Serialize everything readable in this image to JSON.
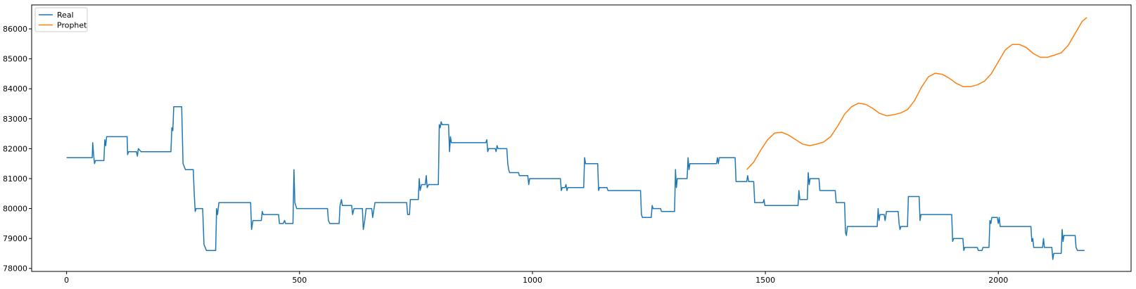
{
  "chart_data": {
    "type": "line",
    "title": "",
    "xlabel": "",
    "ylabel": "",
    "xlim": [
      -75,
      2285
    ],
    "ylim": [
      77900,
      86800
    ],
    "xticks": [
      0,
      500,
      1000,
      1500,
      2000
    ],
    "yticks": [
      78000,
      79000,
      80000,
      81000,
      82000,
      83000,
      84000,
      85000,
      86000
    ],
    "legend": {
      "placement": "top-left",
      "entries": [
        "Real",
        "Prophet"
      ]
    },
    "grid": false,
    "series": [
      {
        "name": "Real",
        "color": "#1f77b4",
        "points": [
          [
            0,
            81700
          ],
          [
            55,
            81700
          ],
          [
            56,
            82200
          ],
          [
            58,
            81800
          ],
          [
            60,
            81500
          ],
          [
            62,
            81600
          ],
          [
            80,
            81600
          ],
          [
            82,
            82300
          ],
          [
            84,
            82100
          ],
          [
            86,
            82400
          ],
          [
            130,
            82400
          ],
          [
            131,
            81800
          ],
          [
            133,
            81900
          ],
          [
            150,
            81900
          ],
          [
            152,
            81750
          ],
          [
            154,
            82000
          ],
          [
            160,
            81900
          ],
          [
            210,
            81900
          ],
          [
            224,
            81900
          ],
          [
            226,
            82700
          ],
          [
            228,
            82600
          ],
          [
            230,
            83400
          ],
          [
            247,
            83400
          ],
          [
            250,
            81500
          ],
          [
            255,
            81300
          ],
          [
            272,
            81300
          ],
          [
            274,
            80500
          ],
          [
            276,
            79900
          ],
          [
            278,
            80000
          ],
          [
            292,
            80000
          ],
          [
            295,
            78800
          ],
          [
            300,
            78600
          ],
          [
            320,
            78600
          ],
          [
            322,
            80000
          ],
          [
            324,
            79800
          ],
          [
            327,
            80200
          ],
          [
            395,
            80200
          ],
          [
            397,
            79300
          ],
          [
            400,
            79600
          ],
          [
            418,
            79600
          ],
          [
            420,
            79900
          ],
          [
            422,
            79800
          ],
          [
            455,
            79800
          ],
          [
            457,
            79500
          ],
          [
            465,
            79500
          ],
          [
            468,
            79600
          ],
          [
            470,
            79500
          ],
          [
            486,
            79500
          ],
          [
            488,
            81300
          ],
          [
            490,
            80200
          ],
          [
            494,
            80000
          ],
          [
            560,
            80000
          ],
          [
            562,
            79600
          ],
          [
            565,
            79500
          ],
          [
            585,
            79500
          ],
          [
            587,
            80100
          ],
          [
            590,
            80300
          ],
          [
            592,
            80100
          ],
          [
            612,
            80100
          ],
          [
            614,
            79800
          ],
          [
            617,
            80000
          ],
          [
            635,
            80000
          ],
          [
            637,
            79300
          ],
          [
            640,
            79600
          ],
          [
            643,
            80000
          ],
          [
            655,
            80000
          ],
          [
            657,
            79700
          ],
          [
            660,
            80000
          ],
          [
            662,
            80200
          ],
          [
            730,
            80200
          ],
          [
            732,
            79800
          ],
          [
            736,
            79800
          ],
          [
            738,
            80300
          ],
          [
            755,
            80300
          ],
          [
            757,
            81000
          ],
          [
            759,
            80600
          ],
          [
            762,
            80800
          ],
          [
            770,
            80800
          ],
          [
            772,
            81100
          ],
          [
            774,
            80700
          ],
          [
            777,
            80800
          ],
          [
            798,
            80800
          ],
          [
            800,
            82800
          ],
          [
            802,
            82700
          ],
          [
            804,
            82900
          ],
          [
            806,
            82800
          ],
          [
            820,
            82800
          ],
          [
            822,
            81900
          ],
          [
            824,
            82400
          ],
          [
            826,
            82200
          ],
          [
            900,
            82200
          ],
          [
            902,
            82300
          ],
          [
            904,
            81900
          ],
          [
            906,
            82000
          ],
          [
            920,
            82000
          ],
          [
            922,
            81900
          ],
          [
            924,
            82100
          ],
          [
            926,
            82000
          ],
          [
            945,
            82000
          ],
          [
            947,
            81500
          ],
          [
            949,
            81300
          ],
          [
            951,
            81200
          ],
          [
            970,
            81200
          ],
          [
            972,
            81100
          ],
          [
            990,
            81100
          ],
          [
            992,
            80800
          ],
          [
            994,
            81000
          ],
          [
            1060,
            81000
          ],
          [
            1062,
            80600
          ],
          [
            1064,
            80700
          ],
          [
            1070,
            80700
          ],
          [
            1072,
            80800
          ],
          [
            1074,
            80600
          ],
          [
            1076,
            80700
          ],
          [
            1110,
            80700
          ],
          [
            1112,
            81700
          ],
          [
            1114,
            81500
          ],
          [
            1140,
            81500
          ],
          [
            1142,
            80600
          ],
          [
            1144,
            80700
          ],
          [
            1160,
            80700
          ],
          [
            1162,
            80600
          ],
          [
            1232,
            80600
          ],
          [
            1234,
            79800
          ],
          [
            1236,
            79700
          ],
          [
            1255,
            79700
          ],
          [
            1257,
            80100
          ],
          [
            1259,
            80000
          ],
          [
            1275,
            80000
          ],
          [
            1277,
            79900
          ],
          [
            1305,
            79900
          ],
          [
            1307,
            81300
          ],
          [
            1309,
            80700
          ],
          [
            1311,
            81000
          ],
          [
            1332,
            81000
          ],
          [
            1334,
            81700
          ],
          [
            1336,
            81300
          ],
          [
            1338,
            81500
          ],
          [
            1395,
            81500
          ],
          [
            1397,
            81700
          ],
          [
            1399,
            81500
          ],
          [
            1401,
            81700
          ],
          [
            1435,
            81700
          ],
          [
            1437,
            80900
          ],
          [
            1460,
            80900
          ],
          [
            1462,
            81100
          ],
          [
            1464,
            80900
          ],
          [
            1475,
            80900
          ],
          [
            1477,
            80200
          ],
          [
            1495,
            80200
          ],
          [
            1497,
            80300
          ],
          [
            1499,
            80100
          ],
          [
            1570,
            80100
          ],
          [
            1572,
            80600
          ],
          [
            1574,
            80300
          ],
          [
            1590,
            80300
          ],
          [
            1592,
            81200
          ],
          [
            1594,
            80800
          ],
          [
            1596,
            81000
          ],
          [
            1615,
            81000
          ],
          [
            1617,
            80600
          ],
          [
            1650,
            80600
          ],
          [
            1652,
            80200
          ],
          [
            1670,
            80200
          ],
          [
            1672,
            79200
          ],
          [
            1674,
            79100
          ],
          [
            1676,
            79400
          ],
          [
            1740,
            79400
          ],
          [
            1742,
            80000
          ],
          [
            1744,
            79600
          ],
          [
            1746,
            79800
          ],
          [
            1755,
            79800
          ],
          [
            1757,
            79600
          ],
          [
            1760,
            79900
          ],
          [
            1785,
            79900
          ],
          [
            1787,
            79500
          ],
          [
            1789,
            79300
          ],
          [
            1791,
            79400
          ],
          [
            1805,
            79400
          ],
          [
            1807,
            80400
          ],
          [
            1830,
            80400
          ],
          [
            1832,
            79600
          ],
          [
            1834,
            79800
          ],
          [
            1900,
            79800
          ],
          [
            1902,
            78900
          ],
          [
            1904,
            79000
          ],
          [
            1924,
            79000
          ],
          [
            1926,
            78600
          ],
          [
            1928,
            78700
          ],
          [
            1955,
            78700
          ],
          [
            1957,
            78600
          ],
          [
            1965,
            78600
          ],
          [
            1967,
            78700
          ],
          [
            1980,
            78700
          ],
          [
            1982,
            79600
          ],
          [
            1984,
            79500
          ],
          [
            1986,
            79700
          ],
          [
            1998,
            79700
          ],
          [
            2000,
            79500
          ],
          [
            2002,
            79700
          ],
          [
            2004,
            79400
          ],
          [
            2070,
            79400
          ],
          [
            2072,
            78900
          ],
          [
            2074,
            79000
          ],
          [
            2076,
            78700
          ],
          [
            2095,
            78700
          ],
          [
            2097,
            79000
          ],
          [
            2099,
            78700
          ],
          [
            2115,
            78700
          ],
          [
            2117,
            78300
          ],
          [
            2119,
            78500
          ],
          [
            2135,
            78500
          ],
          [
            2137,
            79300
          ],
          [
            2139,
            78900
          ],
          [
            2141,
            79100
          ],
          [
            2165,
            79100
          ],
          [
            2167,
            78700
          ],
          [
            2170,
            78600
          ],
          [
            2185,
            78600
          ]
        ]
      },
      {
        "name": "Prophet",
        "color": "#ff7f0e",
        "points": [
          [
            1460,
            81300
          ],
          [
            1475,
            81550
          ],
          [
            1490,
            81950
          ],
          [
            1505,
            82300
          ],
          [
            1520,
            82520
          ],
          [
            1535,
            82550
          ],
          [
            1550,
            82450
          ],
          [
            1565,
            82300
          ],
          [
            1580,
            82150
          ],
          [
            1595,
            82100
          ],
          [
            1610,
            82150
          ],
          [
            1625,
            82220
          ],
          [
            1640,
            82400
          ],
          [
            1655,
            82750
          ],
          [
            1670,
            83150
          ],
          [
            1685,
            83400
          ],
          [
            1700,
            83520
          ],
          [
            1715,
            83480
          ],
          [
            1730,
            83350
          ],
          [
            1745,
            83180
          ],
          [
            1760,
            83100
          ],
          [
            1775,
            83130
          ],
          [
            1790,
            83190
          ],
          [
            1805,
            83300
          ],
          [
            1820,
            83600
          ],
          [
            1835,
            84050
          ],
          [
            1850,
            84400
          ],
          [
            1865,
            84520
          ],
          [
            1880,
            84480
          ],
          [
            1895,
            84350
          ],
          [
            1910,
            84180
          ],
          [
            1925,
            84070
          ],
          [
            1940,
            84070
          ],
          [
            1955,
            84130
          ],
          [
            1970,
            84250
          ],
          [
            1985,
            84500
          ],
          [
            2000,
            84900
          ],
          [
            2015,
            85300
          ],
          [
            2030,
            85480
          ],
          [
            2045,
            85480
          ],
          [
            2060,
            85380
          ],
          [
            2075,
            85180
          ],
          [
            2090,
            85050
          ],
          [
            2105,
            85050
          ],
          [
            2120,
            85120
          ],
          [
            2135,
            85200
          ],
          [
            2150,
            85450
          ],
          [
            2165,
            85850
          ],
          [
            2180,
            86250
          ],
          [
            2190,
            86380
          ]
        ]
      }
    ]
  }
}
